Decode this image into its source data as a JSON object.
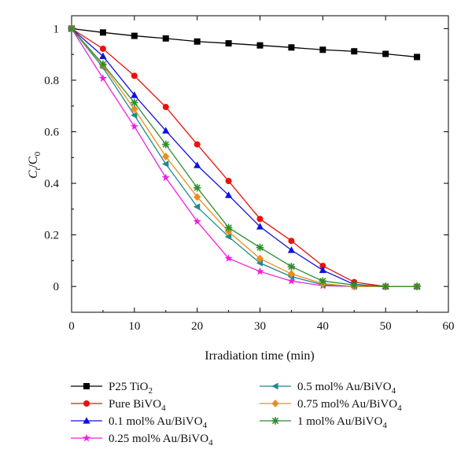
{
  "chart_data": {
    "type": "line",
    "xlabel": "Irradiation time (min)",
    "ylabel": {
      "main": "C",
      "sub1": "t",
      "sep": "/C",
      "sub2": "0"
    },
    "xlim": [
      0,
      60
    ],
    "ylim": [
      -0.1,
      1.05
    ],
    "xticks": [
      0,
      10,
      20,
      30,
      40,
      50,
      60
    ],
    "yticks": [
      0,
      0.2,
      0.4,
      0.6,
      0.8,
      1
    ],
    "ytick_labels": [
      "0",
      "0.2",
      "0.4",
      "0.6",
      "0.8",
      "1"
    ],
    "grid": false,
    "legend_position": "bottom",
    "x": [
      0,
      5,
      10,
      15,
      20,
      25,
      30,
      35,
      40,
      45,
      50,
      55
    ],
    "series": [
      {
        "name": "P25 TiO",
        "name_sub": "2",
        "color": "#000000",
        "marker": "square",
        "values": [
          1.0,
          0.985,
          0.972,
          0.962,
          0.95,
          0.943,
          0.935,
          0.927,
          0.918,
          0.912,
          0.902,
          0.89
        ]
      },
      {
        "name": "Pure BiVO",
        "name_sub": "4",
        "color": "#e8120c",
        "marker": "circle",
        "values": [
          1.0,
          0.922,
          0.817,
          0.696,
          0.551,
          0.409,
          0.262,
          0.177,
          0.08,
          0.017,
          0.0,
          0.0
        ]
      },
      {
        "name": "0.1 mol% Au/BiVO",
        "name_sub": "4",
        "color": "#1010e0",
        "marker": "triangle-up",
        "values": [
          1.0,
          0.893,
          0.742,
          0.604,
          0.47,
          0.354,
          0.232,
          0.141,
          0.063,
          0.008,
          0.0,
          0.0
        ]
      },
      {
        "name": "0.25 mol% Au/BiVO",
        "name_sub": "4",
        "color": "#ee22dd",
        "marker": "star",
        "values": [
          1.0,
          0.807,
          0.62,
          0.422,
          0.252,
          0.109,
          0.058,
          0.021,
          0.003,
          0.0,
          0.0,
          0.0
        ]
      },
      {
        "name": "0.5 mol% Au/BiVO",
        "name_sub": "4",
        "color": "#1e8c8c",
        "marker": "triangle-left",
        "values": [
          1.0,
          0.849,
          0.664,
          0.475,
          0.309,
          0.193,
          0.091,
          0.038,
          0.007,
          0.0,
          0.0,
          0.0
        ]
      },
      {
        "name": "0.75 mol% Au/BiVO",
        "name_sub": "4",
        "color": "#f08c1c",
        "marker": "diamond",
        "values": [
          1.0,
          0.858,
          0.688,
          0.504,
          0.347,
          0.213,
          0.108,
          0.049,
          0.011,
          0.0,
          0.0,
          0.0
        ]
      },
      {
        "name": "1 mol% Au/BiVO",
        "name_sub": "4",
        "color": "#2e8e2e",
        "marker": "asterisk",
        "values": [
          1.0,
          0.862,
          0.713,
          0.551,
          0.383,
          0.228,
          0.151,
          0.077,
          0.021,
          0.006,
          0.0,
          0.0
        ]
      }
    ]
  }
}
